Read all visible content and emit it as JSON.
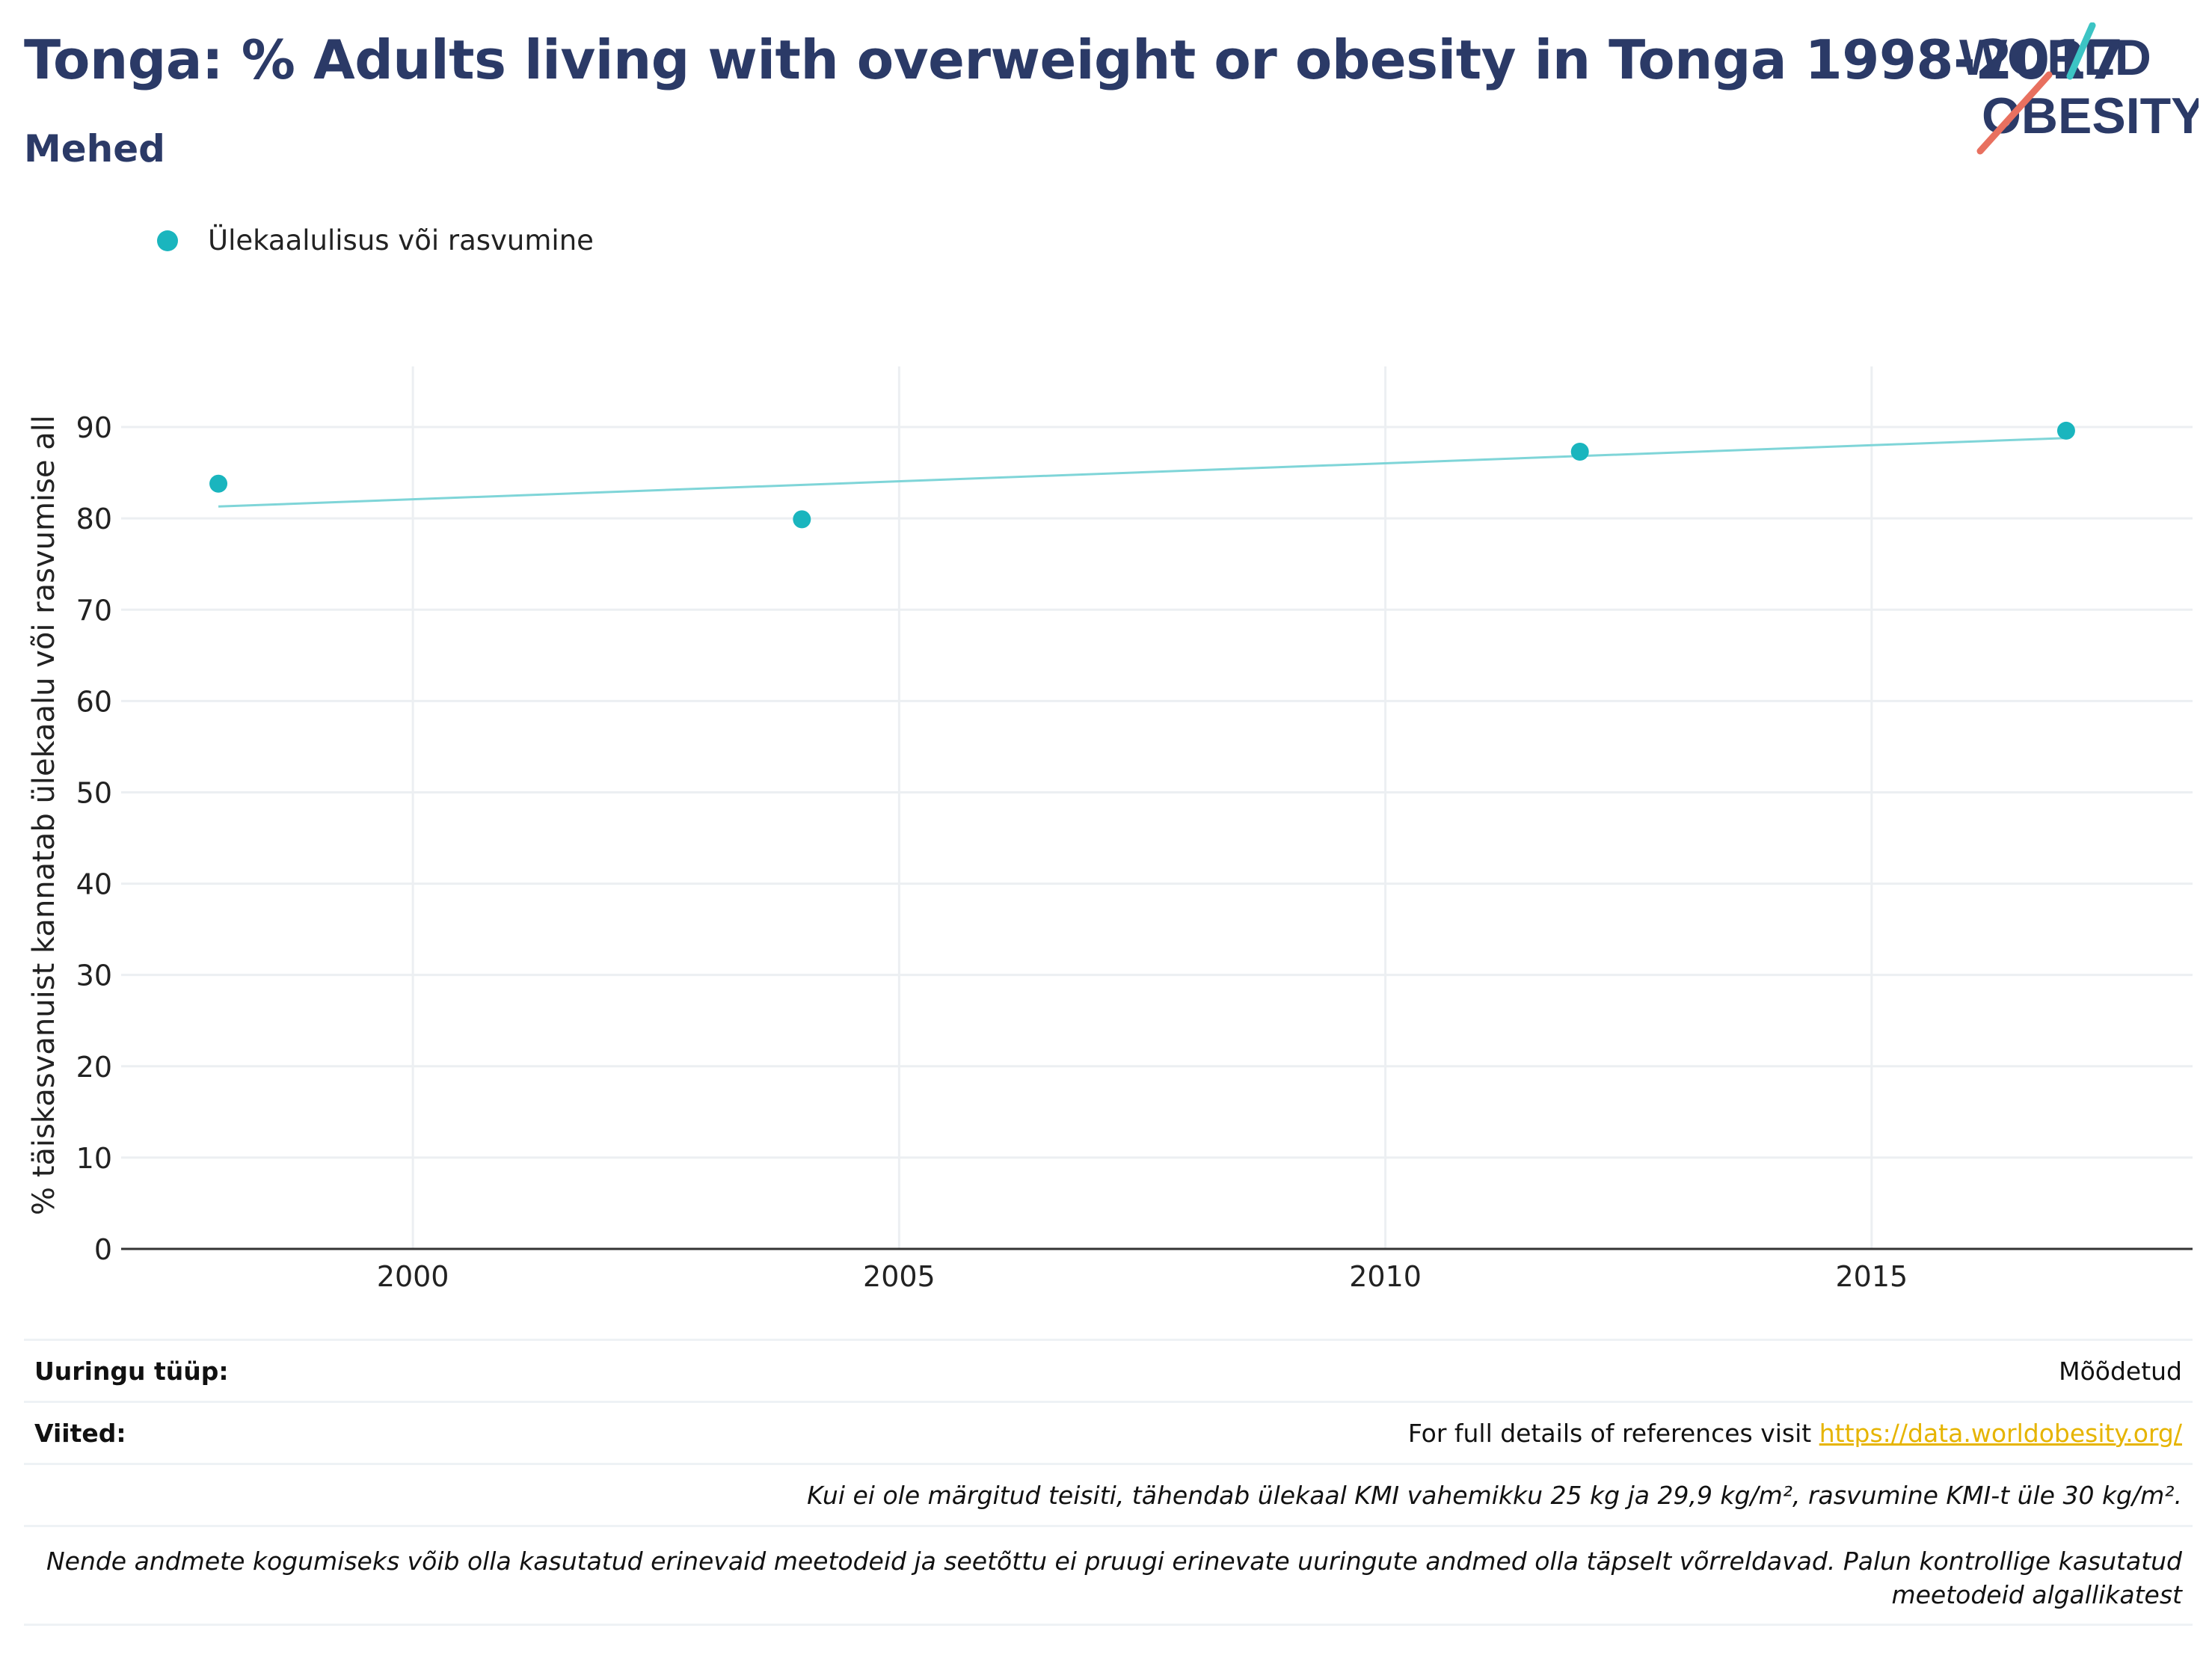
{
  "header": {
    "title": "Tonga: % Adults living with overweight or obesity in Tonga 1998-2017",
    "subtitle": "Mehed"
  },
  "logo": {
    "line1": "WORLD",
    "line2": "OBESITY",
    "colors": {
      "navy": "#2b3a67",
      "teal": "#3cc4c4",
      "coral": "#e8705f"
    }
  },
  "legend": {
    "label": "Ülekaalulisus või rasvumine"
  },
  "colors": {
    "point": "#1ab5be",
    "trend": "#7fd5d8",
    "grid": "#eceff2",
    "axis": "#333333",
    "link": "#e6b400"
  },
  "chart_data": {
    "type": "scatter",
    "title": "Tonga: % Adults living with overweight or obesity in Tonga 1998-2017",
    "subtitle": "Mehed",
    "xlabel": "",
    "ylabel": "% täiskasvanuist kannatab ülekaalu või rasvumise all",
    "xlim": [
      1997,
      2018.3
    ],
    "ylim": [
      0,
      95
    ],
    "x_ticks": [
      2000,
      2005,
      2010,
      2015
    ],
    "y_ticks": [
      0,
      10,
      20,
      30,
      40,
      50,
      60,
      70,
      80,
      90
    ],
    "grid": true,
    "legend_position": "top-left",
    "series": [
      {
        "name": "Ülekaalulisus või rasvumine",
        "x": [
          1998,
          2004,
          2012,
          2017
        ],
        "y": [
          83.8,
          79.9,
          87.3,
          89.6
        ]
      }
    ],
    "trendline": {
      "x": [
        1998,
        2017
      ],
      "y": [
        81.3,
        88.8
      ]
    }
  },
  "footer": {
    "survey_label": "Uuringu tüüp:",
    "survey_value": "Mõõdetud",
    "refs_label": "Viited:",
    "refs_text": "For full details of references visit ",
    "refs_link": "https://data.worldobesity.org/",
    "note1": "Kui ei ole märgitud teisiti, tähendab ülekaal KMI vahemikku 25 kg ja 29,9 kg/m², rasvumine KMI-t üle 30 kg/m².",
    "note2": "Nende andmete kogumiseks võib olla kasutatud erinevaid meetodeid ja seetõttu ei pruugi erinevate uuringute andmed olla täpselt võrreldavad. Palun kontrollige kasutatud meetodeid algallikatest"
  }
}
